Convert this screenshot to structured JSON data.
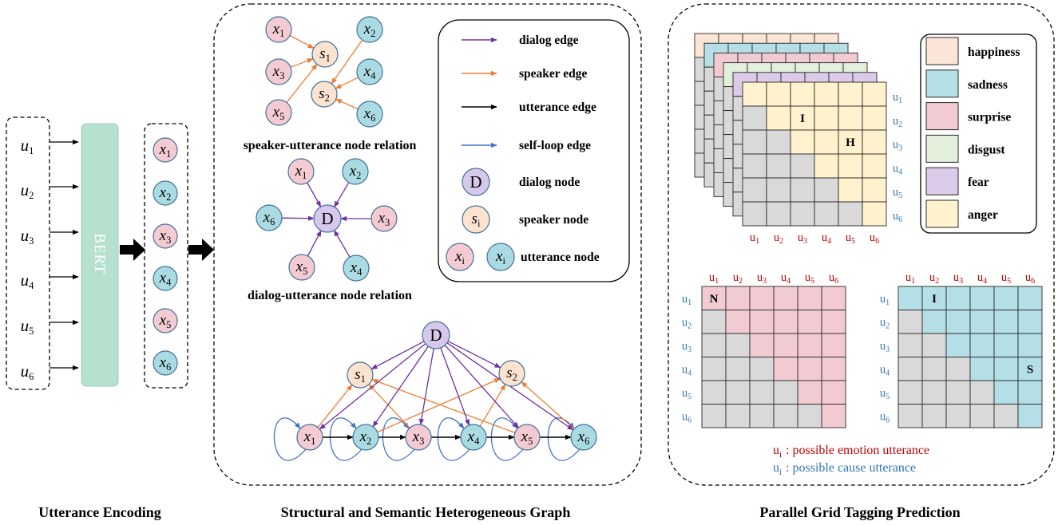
{
  "titles": {
    "encoding": "Utterance Encoding",
    "graph": "Structural and Semantic Heterogeneous Graph",
    "grid": "Parallel Grid Tagging Prediction"
  },
  "encoder": "BERT",
  "relations": {
    "speaker": "speaker-utterance node relation",
    "dialog": "dialog-utterance node relation"
  },
  "symbols": {
    "utterance": "u",
    "node": "x",
    "speaker": "s",
    "dialog": "D",
    "generic_index": "i"
  },
  "indices": [
    "1",
    "2",
    "3",
    "4",
    "5",
    "6"
  ],
  "edge_legend": [
    {
      "label": "dialog edge",
      "color": "#7030a0"
    },
    {
      "label": "speaker edge",
      "color": "#ed7d31"
    },
    {
      "label": "utterance edge",
      "color": "#000000"
    },
    {
      "label": "self-loop edge",
      "color": "#4472c4"
    }
  ],
  "node_legend": {
    "dialog": "dialog node",
    "speaker": "speaker node",
    "utterance": "utterance node"
  },
  "emotions": [
    {
      "label": "happiness",
      "color": "#fbe5d6"
    },
    {
      "label": "sadness",
      "color": "#b4dfe6"
    },
    {
      "label": "surprise",
      "color": "#f2cbd2"
    },
    {
      "label": "disgust",
      "color": "#e2efda"
    },
    {
      "label": "fear",
      "color": "#dccbe8"
    },
    {
      "label": "anger",
      "color": "#fff2cc"
    }
  ],
  "cell_tags": {
    "anger_grid": [
      "I",
      "H"
    ],
    "emotion_grid": [
      "N"
    ],
    "cause_grid": [
      "I",
      "S"
    ]
  },
  "notes": {
    "emotion": ": possible emotion utterance",
    "cause": ": possible cause utterance"
  },
  "colors": {
    "emotion_label": "#c00000",
    "cause_label": "#2e75b6",
    "masked_cell": "#d9d9d9",
    "node_pink": "#f4cbd2",
    "node_blue": "#aadbe3",
    "node_outline": "#41719c",
    "speaker_node": "#fbe3cf",
    "dialog_node": "#d6c8ea",
    "encoder": "#b7e1cf",
    "encoder_outline": "#9ccfbd"
  }
}
